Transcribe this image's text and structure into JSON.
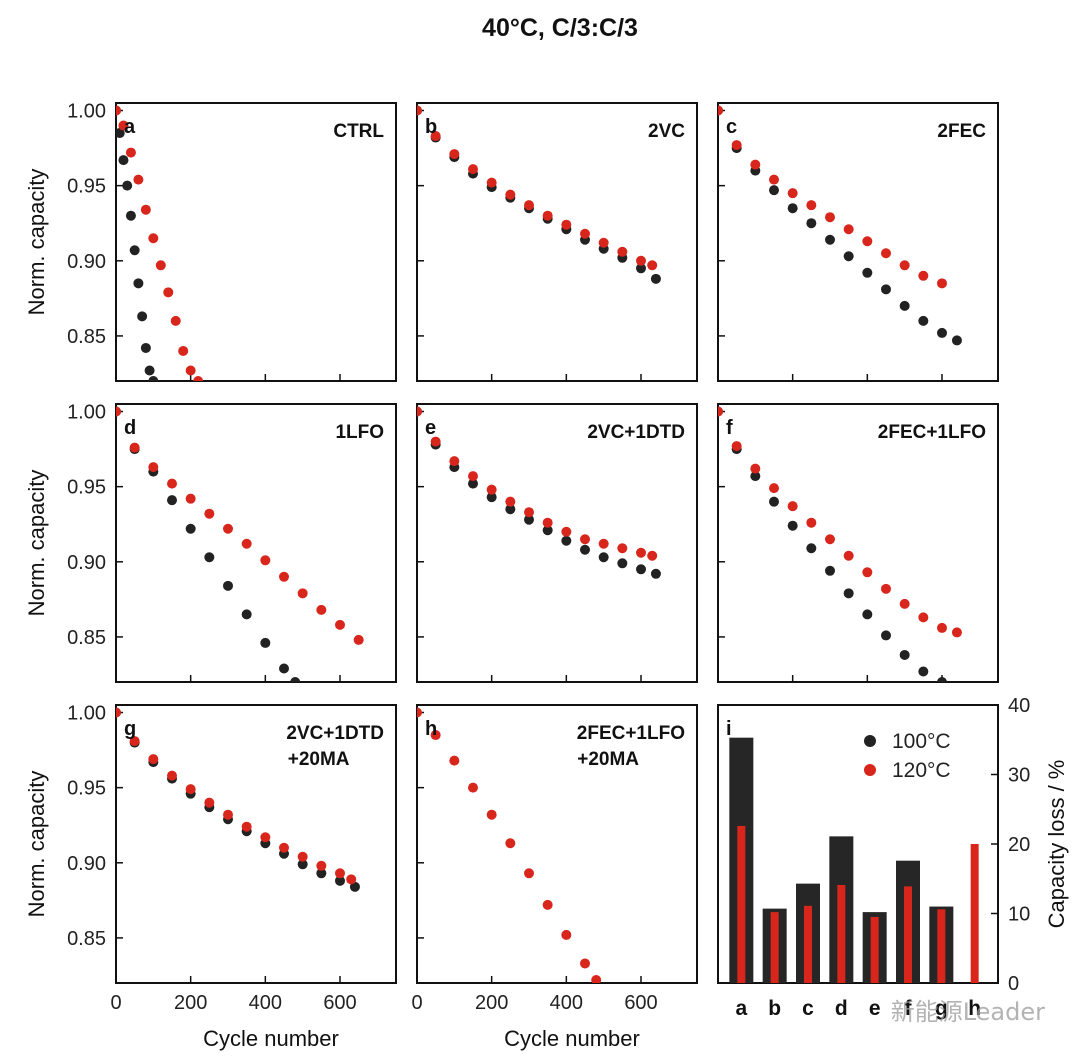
{
  "figure": {
    "title": "40°C, C/3:C/3",
    "ylabel_left": "Norm. capacity",
    "xlabel": "Cycle number",
    "ylabel_right": "Capacity loss / %",
    "watermark": "新能源Leader",
    "x_ticks": [
      "0",
      "200",
      "400",
      "600"
    ],
    "y_ticks": [
      "0.85",
      "0.90",
      "0.95",
      "1.00"
    ],
    "colors": {
      "s100": "#222222",
      "s120": "#d9261c",
      "bar100": "#262626",
      "bar120": "#d9261c"
    }
  },
  "chart_data": [
    {
      "panel": "a",
      "label": "CTRL",
      "type": "scatter",
      "xlim": [
        0,
        750
      ],
      "ylim": [
        0.82,
        1.005
      ],
      "series": [
        {
          "name": "100°C",
          "points": [
            [
              0,
              1.0
            ],
            [
              10,
              0.985
            ],
            [
              20,
              0.967
            ],
            [
              30,
              0.95
            ],
            [
              40,
              0.93
            ],
            [
              50,
              0.907
            ],
            [
              60,
              0.885
            ],
            [
              70,
              0.863
            ],
            [
              80,
              0.842
            ],
            [
              90,
              0.827
            ],
            [
              100,
              0.82
            ]
          ]
        },
        {
          "name": "120°C",
          "points": [
            [
              0,
              1.0
            ],
            [
              20,
              0.99
            ],
            [
              40,
              0.972
            ],
            [
              60,
              0.954
            ],
            [
              80,
              0.934
            ],
            [
              100,
              0.915
            ],
            [
              120,
              0.897
            ],
            [
              140,
              0.879
            ],
            [
              160,
              0.86
            ],
            [
              180,
              0.84
            ],
            [
              200,
              0.827
            ],
            [
              220,
              0.82
            ]
          ]
        }
      ]
    },
    {
      "panel": "b",
      "label": "2VC",
      "type": "scatter",
      "xlim": [
        0,
        750
      ],
      "ylim": [
        0.82,
        1.005
      ],
      "series": [
        {
          "name": "100°C",
          "points": [
            [
              0,
              1.0
            ],
            [
              50,
              0.982
            ],
            [
              100,
              0.969
            ],
            [
              150,
              0.958
            ],
            [
              200,
              0.949
            ],
            [
              250,
              0.942
            ],
            [
              300,
              0.935
            ],
            [
              350,
              0.928
            ],
            [
              400,
              0.921
            ],
            [
              450,
              0.914
            ],
            [
              500,
              0.908
            ],
            [
              550,
              0.902
            ],
            [
              600,
              0.895
            ],
            [
              640,
              0.888
            ]
          ]
        },
        {
          "name": "120°C",
          "points": [
            [
              0,
              1.0
            ],
            [
              50,
              0.983
            ],
            [
              100,
              0.971
            ],
            [
              150,
              0.961
            ],
            [
              200,
              0.952
            ],
            [
              250,
              0.944
            ],
            [
              300,
              0.937
            ],
            [
              350,
              0.93
            ],
            [
              400,
              0.924
            ],
            [
              450,
              0.918
            ],
            [
              500,
              0.912
            ],
            [
              550,
              0.906
            ],
            [
              600,
              0.9
            ],
            [
              630,
              0.897
            ]
          ]
        }
      ]
    },
    {
      "panel": "c",
      "label": "2FEC",
      "type": "scatter",
      "xlim": [
        0,
        750
      ],
      "ylim": [
        0.82,
        1.005
      ],
      "series": [
        {
          "name": "100°C",
          "points": [
            [
              0,
              1.0
            ],
            [
              50,
              0.975
            ],
            [
              100,
              0.96
            ],
            [
              150,
              0.947
            ],
            [
              200,
              0.935
            ],
            [
              250,
              0.925
            ],
            [
              300,
              0.914
            ],
            [
              350,
              0.903
            ],
            [
              400,
              0.892
            ],
            [
              450,
              0.881
            ],
            [
              500,
              0.87
            ],
            [
              550,
              0.86
            ],
            [
              600,
              0.852
            ],
            [
              640,
              0.847
            ]
          ]
        },
        {
          "name": "120°C",
          "points": [
            [
              0,
              1.0
            ],
            [
              50,
              0.977
            ],
            [
              100,
              0.964
            ],
            [
              150,
              0.954
            ],
            [
              200,
              0.945
            ],
            [
              250,
              0.937
            ],
            [
              300,
              0.929
            ],
            [
              350,
              0.921
            ],
            [
              400,
              0.913
            ],
            [
              450,
              0.905
            ],
            [
              500,
              0.897
            ],
            [
              550,
              0.89
            ],
            [
              600,
              0.885
            ]
          ]
        }
      ]
    },
    {
      "panel": "d",
      "label": "1LFO",
      "type": "scatter",
      "xlim": [
        0,
        750
      ],
      "ylim": [
        0.82,
        1.005
      ],
      "series": [
        {
          "name": "100°C",
          "points": [
            [
              0,
              1.0
            ],
            [
              50,
              0.975
            ],
            [
              100,
              0.96
            ],
            [
              150,
              0.941
            ],
            [
              200,
              0.922
            ],
            [
              250,
              0.903
            ],
            [
              300,
              0.884
            ],
            [
              350,
              0.865
            ],
            [
              400,
              0.846
            ],
            [
              450,
              0.829
            ],
            [
              480,
              0.82
            ]
          ]
        },
        {
          "name": "120°C",
          "points": [
            [
              0,
              1.0
            ],
            [
              50,
              0.976
            ],
            [
              100,
              0.963
            ],
            [
              150,
              0.952
            ],
            [
              200,
              0.942
            ],
            [
              250,
              0.932
            ],
            [
              300,
              0.922
            ],
            [
              350,
              0.912
            ],
            [
              400,
              0.901
            ],
            [
              450,
              0.89
            ],
            [
              500,
              0.879
            ],
            [
              550,
              0.868
            ],
            [
              600,
              0.858
            ],
            [
              650,
              0.848
            ]
          ]
        }
      ]
    },
    {
      "panel": "e",
      "label": "2VC+1DTD",
      "type": "scatter",
      "xlim": [
        0,
        750
      ],
      "ylim": [
        0.82,
        1.005
      ],
      "series": [
        {
          "name": "100°C",
          "points": [
            [
              0,
              1.0
            ],
            [
              50,
              0.978
            ],
            [
              100,
              0.963
            ],
            [
              150,
              0.952
            ],
            [
              200,
              0.943
            ],
            [
              250,
              0.935
            ],
            [
              300,
              0.928
            ],
            [
              350,
              0.921
            ],
            [
              400,
              0.914
            ],
            [
              450,
              0.908
            ],
            [
              500,
              0.903
            ],
            [
              550,
              0.899
            ],
            [
              600,
              0.895
            ],
            [
              640,
              0.892
            ]
          ]
        },
        {
          "name": "120°C",
          "points": [
            [
              0,
              1.0
            ],
            [
              50,
              0.98
            ],
            [
              100,
              0.967
            ],
            [
              150,
              0.957
            ],
            [
              200,
              0.948
            ],
            [
              250,
              0.94
            ],
            [
              300,
              0.933
            ],
            [
              350,
              0.926
            ],
            [
              400,
              0.92
            ],
            [
              450,
              0.915
            ],
            [
              500,
              0.912
            ],
            [
              550,
              0.909
            ],
            [
              600,
              0.906
            ],
            [
              630,
              0.904
            ]
          ]
        }
      ]
    },
    {
      "panel": "f",
      "label": "2FEC+1LFO",
      "type": "scatter",
      "xlim": [
        0,
        750
      ],
      "ylim": [
        0.82,
        1.005
      ],
      "series": [
        {
          "name": "100°C",
          "points": [
            [
              0,
              1.0
            ],
            [
              50,
              0.975
            ],
            [
              100,
              0.957
            ],
            [
              150,
              0.94
            ],
            [
              200,
              0.924
            ],
            [
              250,
              0.909
            ],
            [
              300,
              0.894
            ],
            [
              350,
              0.879
            ],
            [
              400,
              0.865
            ],
            [
              450,
              0.851
            ],
            [
              500,
              0.838
            ],
            [
              550,
              0.827
            ],
            [
              600,
              0.82
            ]
          ]
        },
        {
          "name": "120°C",
          "points": [
            [
              0,
              1.0
            ],
            [
              50,
              0.977
            ],
            [
              100,
              0.962
            ],
            [
              150,
              0.949
            ],
            [
              200,
              0.937
            ],
            [
              250,
              0.926
            ],
            [
              300,
              0.915
            ],
            [
              350,
              0.904
            ],
            [
              400,
              0.893
            ],
            [
              450,
              0.882
            ],
            [
              500,
              0.872
            ],
            [
              550,
              0.863
            ],
            [
              600,
              0.856
            ],
            [
              640,
              0.853
            ]
          ]
        }
      ]
    },
    {
      "panel": "g",
      "label": "2VC+1DTD",
      "label2": "+20MA",
      "type": "scatter",
      "xlim": [
        0,
        750
      ],
      "ylim": [
        0.82,
        1.005
      ],
      "series": [
        {
          "name": "100°C",
          "points": [
            [
              0,
              1.0
            ],
            [
              50,
              0.98
            ],
            [
              100,
              0.967
            ],
            [
              150,
              0.956
            ],
            [
              200,
              0.946
            ],
            [
              250,
              0.937
            ],
            [
              300,
              0.929
            ],
            [
              350,
              0.921
            ],
            [
              400,
              0.913
            ],
            [
              450,
              0.906
            ],
            [
              500,
              0.899
            ],
            [
              550,
              0.893
            ],
            [
              600,
              0.888
            ],
            [
              640,
              0.884
            ]
          ]
        },
        {
          "name": "120°C",
          "points": [
            [
              0,
              1.0
            ],
            [
              50,
              0.981
            ],
            [
              100,
              0.969
            ],
            [
              150,
              0.958
            ],
            [
              200,
              0.949
            ],
            [
              250,
              0.94
            ],
            [
              300,
              0.932
            ],
            [
              350,
              0.924
            ],
            [
              400,
              0.917
            ],
            [
              450,
              0.91
            ],
            [
              500,
              0.904
            ],
            [
              550,
              0.898
            ],
            [
              600,
              0.893
            ],
            [
              630,
              0.889
            ]
          ]
        }
      ]
    },
    {
      "panel": "h",
      "label": "2FEC+1LFO",
      "label2": "+20MA",
      "type": "scatter",
      "xlim": [
        0,
        750
      ],
      "ylim": [
        0.82,
        1.005
      ],
      "series": [
        {
          "name": "120°C",
          "points": [
            [
              0,
              1.0
            ],
            [
              50,
              0.985
            ],
            [
              100,
              0.968
            ],
            [
              150,
              0.95
            ],
            [
              200,
              0.932
            ],
            [
              250,
              0.913
            ],
            [
              300,
              0.893
            ],
            [
              350,
              0.872
            ],
            [
              400,
              0.852
            ],
            [
              450,
              0.833
            ],
            [
              480,
              0.822
            ]
          ]
        }
      ]
    },
    {
      "panel": "i",
      "type": "bar",
      "categories": [
        "a",
        "b",
        "c",
        "d",
        "e",
        "f",
        "g",
        "h"
      ],
      "ylim": [
        0,
        40
      ],
      "y_ticks": [
        "0",
        "10",
        "20",
        "30",
        "40"
      ],
      "legend": "top-right",
      "series": [
        {
          "name": "100°C",
          "values": [
            35.3,
            10.7,
            14.3,
            21.1,
            10.2,
            17.6,
            11,
            null
          ]
        },
        {
          "name": "120°C",
          "values": [
            22.6,
            10.2,
            11.1,
            14.1,
            9.5,
            13.9,
            10.6,
            20
          ]
        }
      ]
    }
  ]
}
